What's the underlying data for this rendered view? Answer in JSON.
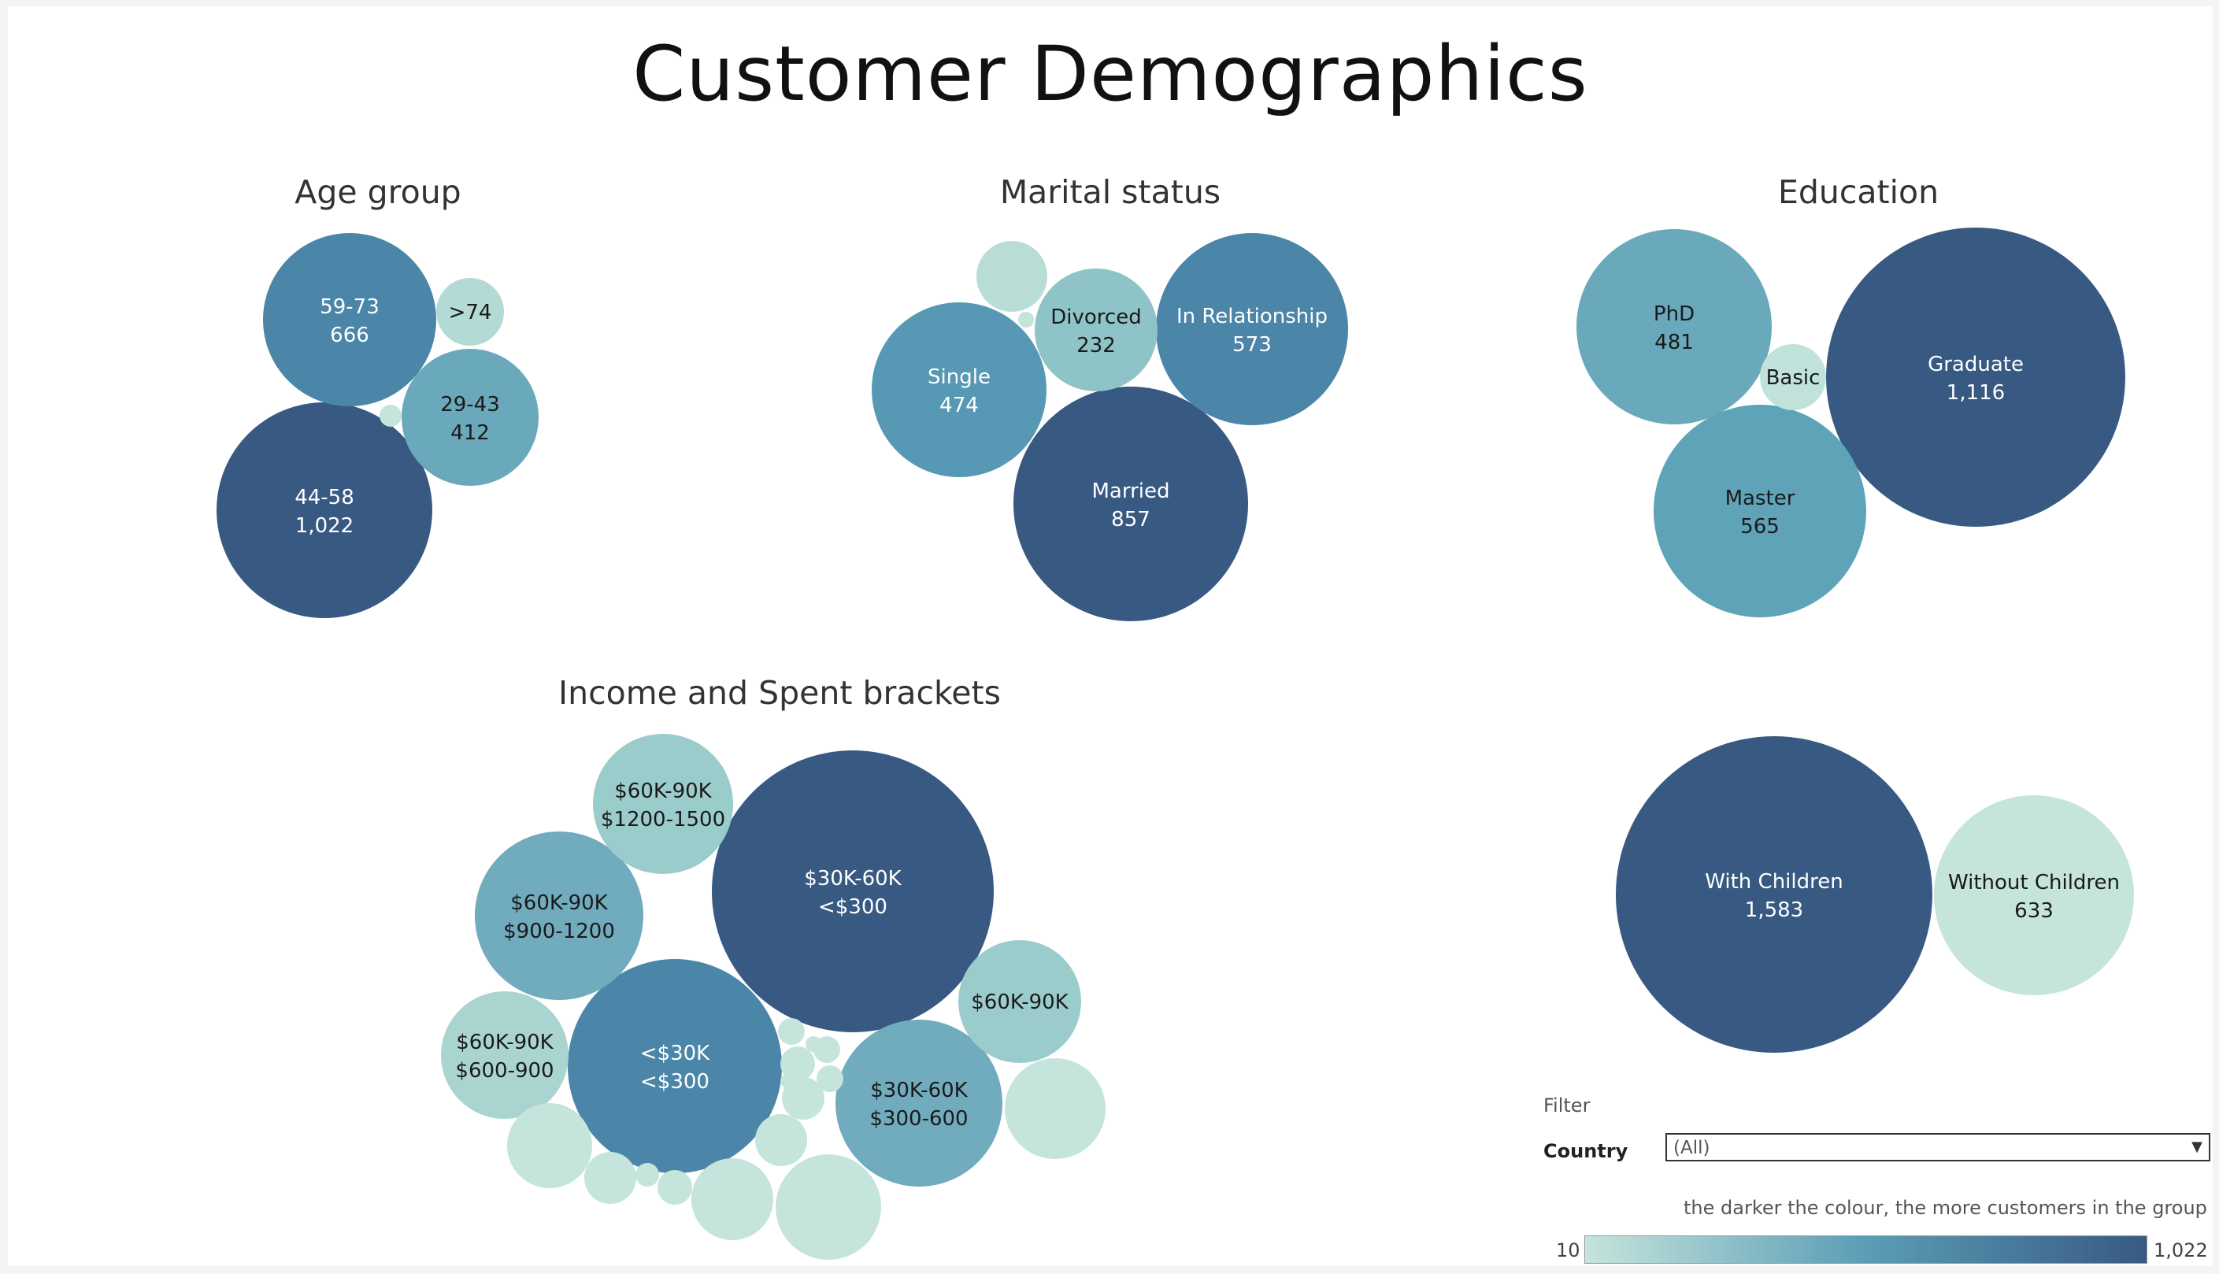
{
  "page": {
    "title": "Customer Demographics"
  },
  "legend": {
    "note": "the darker the colour, the more customers in the group",
    "min_label": "10",
    "max_label": "1,022",
    "color_low": "#c5e4dc",
    "color_mid": "#5b9db6",
    "color_high": "#385a82"
  },
  "filter": {
    "title": "Filter",
    "country_label": "Country",
    "country_value": "(All)"
  },
  "chart_data": [
    {
      "type": "bubble",
      "title": "Age group",
      "bubbles": [
        {
          "label": "44-58",
          "value_label": "1,022",
          "value": 1022,
          "color": "#385a82"
        },
        {
          "label": "59-73",
          "value_label": "666",
          "value": 666,
          "color": "#4b86a9"
        },
        {
          "label": "29-43",
          "value_label": "412",
          "value": 412,
          "color": "#6aa9bc"
        },
        {
          "label": ">74",
          "value_label": "",
          "value": 60,
          "color": "#b3dad4"
        },
        {
          "label": "",
          "value_label": "",
          "value": 10,
          "color": "#c5e4dc"
        }
      ]
    },
    {
      "type": "bubble",
      "title": "Marital status",
      "bubbles": [
        {
          "label": "Married",
          "value_label": "857",
          "value": 857,
          "color": "#385a82"
        },
        {
          "label": "In Relationship",
          "value_label": "573",
          "value": 573,
          "color": "#4b86a9"
        },
        {
          "label": "Single",
          "value_label": "474",
          "value": 474,
          "color": "#5799b4"
        },
        {
          "label": "Divorced",
          "value_label": "232",
          "value": 232,
          "color": "#8ec3c7"
        },
        {
          "label": "",
          "value_label": "",
          "value": 76,
          "color": "#b8ddd6"
        },
        {
          "label": "",
          "value_label": "",
          "value": 5,
          "color": "#c5e4dc"
        }
      ]
    },
    {
      "type": "bubble",
      "title": "Education",
      "bubbles": [
        {
          "label": "Graduate",
          "value_label": "1,116",
          "value": 1116,
          "color": "#385a82"
        },
        {
          "label": "Master",
          "value_label": "565",
          "value": 565,
          "color": "#5fa3b8"
        },
        {
          "label": "PhD",
          "value_label": "481",
          "value": 481,
          "color": "#6aa9bc"
        },
        {
          "label": "Basic",
          "value_label": "",
          "value": 54,
          "color": "#c0e2da"
        }
      ]
    },
    {
      "type": "bubble",
      "title": "Income and Spent brackets",
      "bubbles": [
        {
          "label": "$30K-60K",
          "sublabel": "<$300",
          "value": 500,
          "color": "#385a82"
        },
        {
          "label": "<$30K",
          "sublabel": "<$300",
          "value": 290,
          "color": "#4b86a9"
        },
        {
          "label": "$30K-60K",
          "sublabel": "$300-600",
          "value": 180,
          "color": "#71abbe"
        },
        {
          "label": "$60K-90K",
          "sublabel": "$900-1200",
          "value": 180,
          "color": "#71abbe"
        },
        {
          "label": "$60K-90K",
          "sublabel": "$1200-1500",
          "value": 125,
          "color": "#9bcccc"
        },
        {
          "label": "$60K-90K",
          "sublabel": "",
          "value": 100,
          "color": "#9bcccc"
        },
        {
          "label": "$60K-90K",
          "sublabel": "$600-900",
          "value": 100,
          "color": "#a9d4d0"
        },
        {
          "label": "",
          "sublabel": "",
          "value": 70,
          "color": "#c5e4dc"
        },
        {
          "label": "",
          "sublabel": "",
          "value": 60,
          "color": "#c5e4dc"
        },
        {
          "label": "",
          "sublabel": "",
          "value": 45,
          "color": "#c5e4dc"
        },
        {
          "label": "",
          "sublabel": "",
          "value": 45,
          "color": "#c5e4dc"
        },
        {
          "label": "",
          "sublabel": "",
          "value": 15,
          "color": "#c5e4dc"
        },
        {
          "label": "",
          "sublabel": "",
          "value": 14,
          "color": "#c5e4dc"
        },
        {
          "label": "",
          "sublabel": "",
          "value": 8,
          "color": "#c5e4dc"
        },
        {
          "label": "",
          "sublabel": "",
          "value": 8,
          "color": "#c5e4dc"
        },
        {
          "label": "",
          "sublabel": "",
          "value": 5,
          "color": "#c5e4dc"
        },
        {
          "label": "",
          "sublabel": "",
          "value": 5,
          "color": "#c5e4dc"
        },
        {
          "label": "",
          "sublabel": "",
          "value": 4,
          "color": "#c5e4dc"
        },
        {
          "label": "",
          "sublabel": "",
          "value": 4,
          "color": "#c5e4dc"
        },
        {
          "label": "",
          "sublabel": "",
          "value": 3,
          "color": "#c5e4dc"
        },
        {
          "label": "",
          "sublabel": "",
          "value": 3,
          "color": "#c5e4dc"
        },
        {
          "label": "",
          "sublabel": "",
          "value": 2,
          "color": "#c5e4dc"
        }
      ]
    },
    {
      "type": "bubble",
      "title": "",
      "bubbles": [
        {
          "label": "With Children",
          "value_label": "1,583",
          "value": 1583,
          "color": "#385a82"
        },
        {
          "label": "Without Children",
          "value_label": "633",
          "value": 633,
          "color": "#c5e4dc"
        }
      ]
    }
  ]
}
